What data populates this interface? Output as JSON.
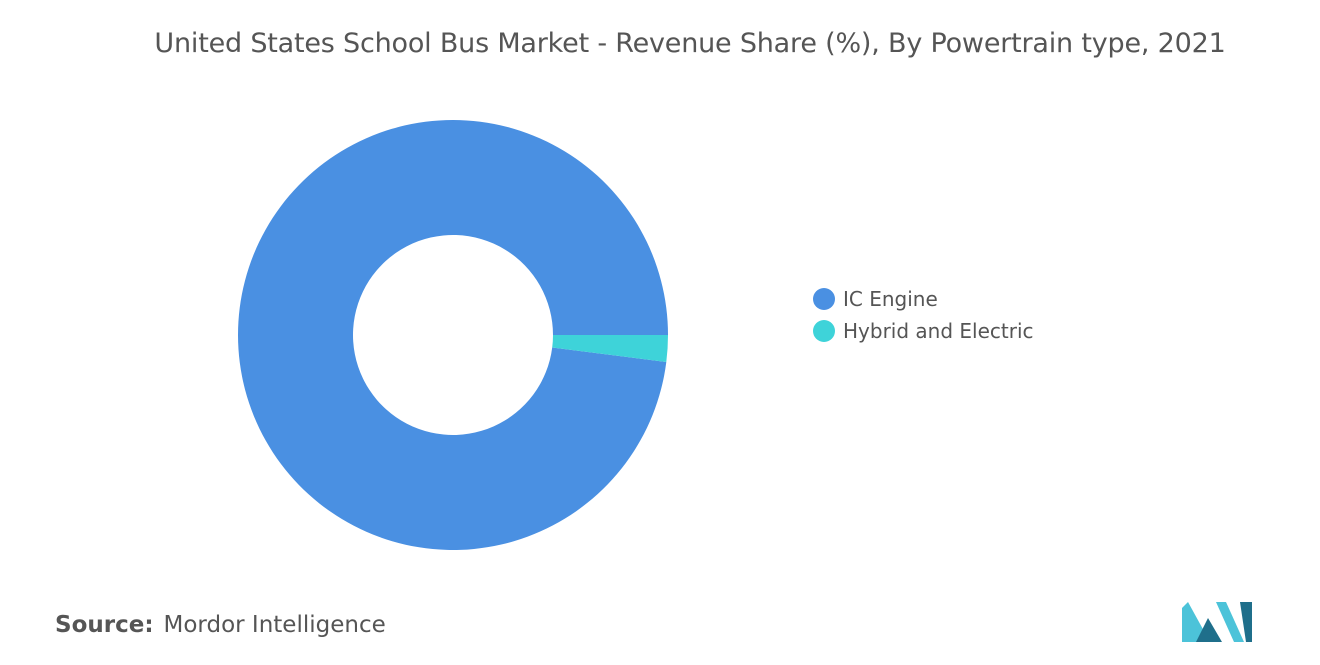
{
  "chart_data": {
    "type": "pie",
    "title": "United States School Bus Market - Revenue Share (%), By Powertrain type, 2021",
    "categories": [
      "IC Engine",
      "Hybrid and Electric"
    ],
    "values": [
      98,
      2
    ],
    "colors": [
      "#4a90e2",
      "#3ed3d9"
    ],
    "legend_position": "right"
  },
  "footer": {
    "source_label": "Source:",
    "source_value": "Mordor Intelligence"
  },
  "logo": {
    "icon": "mordor-intelligence-logo-icon",
    "colors": [
      "#1f6f8b",
      "#4cc3d9"
    ]
  }
}
